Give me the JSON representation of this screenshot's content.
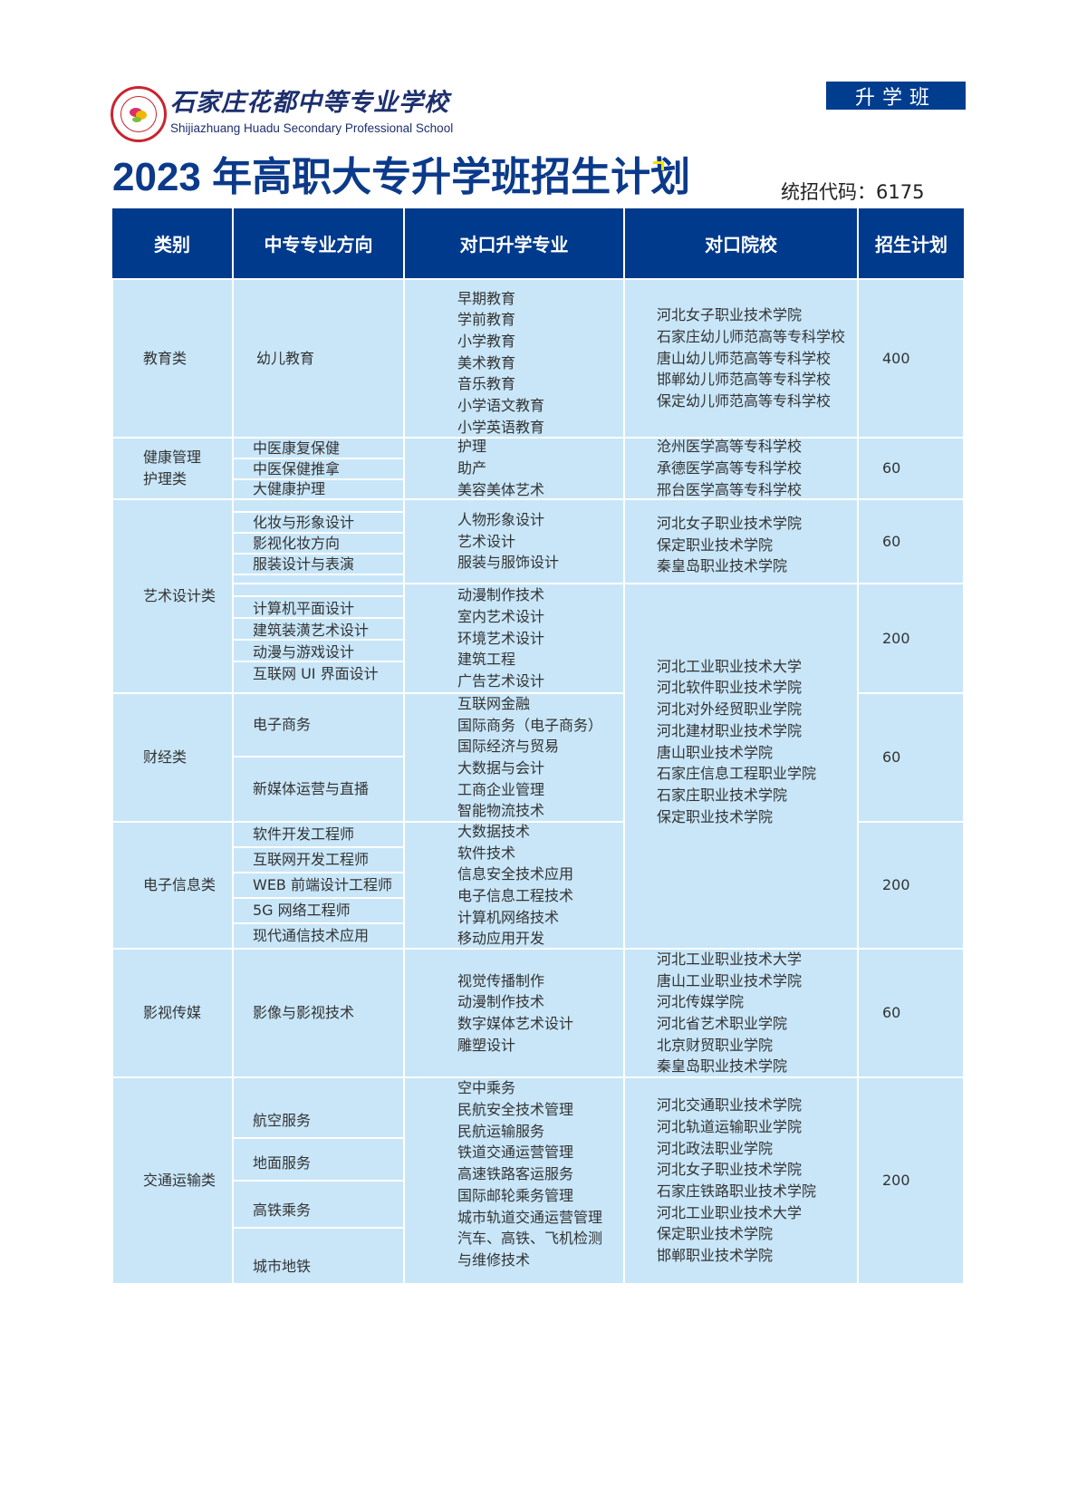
{
  "school": {
    "name_cn": "石家庄花都中等专业学校",
    "name_en": "Shijiazhuang Huadu Secondary Professional School",
    "badge": "升学班"
  },
  "title": "2023 年高职大专升学班招生计划",
  "enroll_code": "统招代码：6175",
  "colors": {
    "header_bg": "#003a8c",
    "cell_bg": "#c8e6f8",
    "title": "#0b3a8a"
  },
  "headers": [
    "类别",
    "中专专业方向",
    "对口升学专业",
    "对口院校",
    "招生计划"
  ],
  "rows": [
    {
      "category": "教育类",
      "directions": [
        "幼儿教育"
      ],
      "majors": [
        "早期教育",
        "学前教育",
        "小学教育",
        "美术教育",
        "音乐教育",
        "小学语文教育",
        "小学英语教育"
      ],
      "colleges": [
        "河北女子职业技术学院",
        "石家庄幼儿师范高等专科学校",
        "唐山幼儿师范高等专科学校",
        "邯郸幼儿师范高等专科学校",
        "保定幼儿师范高等专科学校"
      ],
      "plan": "400"
    },
    {
      "category": [
        "健康管理",
        "护理类"
      ],
      "directions": [
        "中医康复保健",
        "中医保健推拿",
        "大健康护理"
      ],
      "majors": [
        "护理",
        "助产",
        "美容美体艺术"
      ],
      "colleges": [
        "沧州医学高等专科学校",
        "承德医学高等专科学校",
        "邢台医学高等专科学校"
      ],
      "plan": "60"
    },
    {
      "category": "艺术设计类",
      "groups": [
        {
          "directions": [
            "化妆与形象设计",
            "影视化妆方向",
            "服装设计与表演"
          ],
          "majors": [
            "人物形象设计",
            "艺术设计",
            "服装与服饰设计"
          ],
          "colleges": [
            "河北女子职业技术学院",
            "保定职业技术学院",
            "秦皇岛职业技术学院"
          ],
          "plan": "60"
        },
        {
          "directions": [
            "计算机平面设计",
            "建筑装潢艺术设计",
            "动漫与游戏设计",
            "互联网 UI 界面设计"
          ],
          "majors": [
            "动漫制作技术",
            "室内艺术设计",
            "环境艺术设计",
            "建筑工程",
            "广告艺术设计"
          ],
          "plan": "200"
        }
      ]
    },
    {
      "category": "财经类",
      "directions": [
        "电子商务",
        "新媒体运营与直播"
      ],
      "majors": [
        "互联网金融",
        "国际商务（电子商务）",
        "国际经济与贸易",
        "大数据与会计",
        "工商企业管理",
        "智能物流技术"
      ],
      "plan": "60"
    },
    {
      "category": "电子信息类",
      "directions": [
        "软件开发工程师",
        "互联网开发工程师",
        "WEB 前端设计工程师",
        "5G 网络工程师",
        "现代通信技术应用"
      ],
      "majors": [
        "大数据技术",
        "软件技术",
        "信息安全技术应用",
        "电子信息工程技术",
        "计算机网络技术",
        "移动应用开发"
      ],
      "plan": "200"
    },
    {
      "category": "影视传媒",
      "directions": [
        "影像与影视技术"
      ],
      "majors": [
        "视觉传播制作",
        "动漫制作技术",
        "数字媒体艺术设计",
        "雕塑设计"
      ],
      "colleges": [
        "河北工业职业技术大学",
        "唐山工业职业技术学院",
        "河北传媒学院",
        "河北省艺术职业学院",
        "北京财贸职业学院",
        "秦皇岛职业技术学院"
      ],
      "plan": "60"
    },
    {
      "category": "交通运输类",
      "directions": [
        "航空服务",
        "地面服务",
        "高铁乘务",
        "城市地铁"
      ],
      "majors": [
        "空中乘务",
        "民航安全技术管理",
        "民航运输服务",
        "铁道交通运营管理",
        "高速铁路客运服务",
        "国际邮轮乘务管理",
        "城市轨道交通运营管理",
        "汽车、高铁、飞机检测",
        "与维修技术"
      ],
      "colleges": [
        "河北交通职业技术学院",
        "河北轨道运输职业学院",
        "河北政法职业学院",
        "河北女子职业技术学院",
        "石家庄铁路职业技术学院",
        "河北工业职业技术大学",
        "保定职业技术学院",
        "邯郸职业技术学院"
      ],
      "plan": "200"
    }
  ],
  "shared_colleges": [
    "河北工业职业技术大学",
    "河北软件职业技术学院",
    "河北对外经贸职业学院",
    "河北建材职业技术学院",
    "唐山职业技术学院",
    "石家庄信息工程职业学院",
    "石家庄职业技术学院",
    "保定职业技术学院"
  ]
}
